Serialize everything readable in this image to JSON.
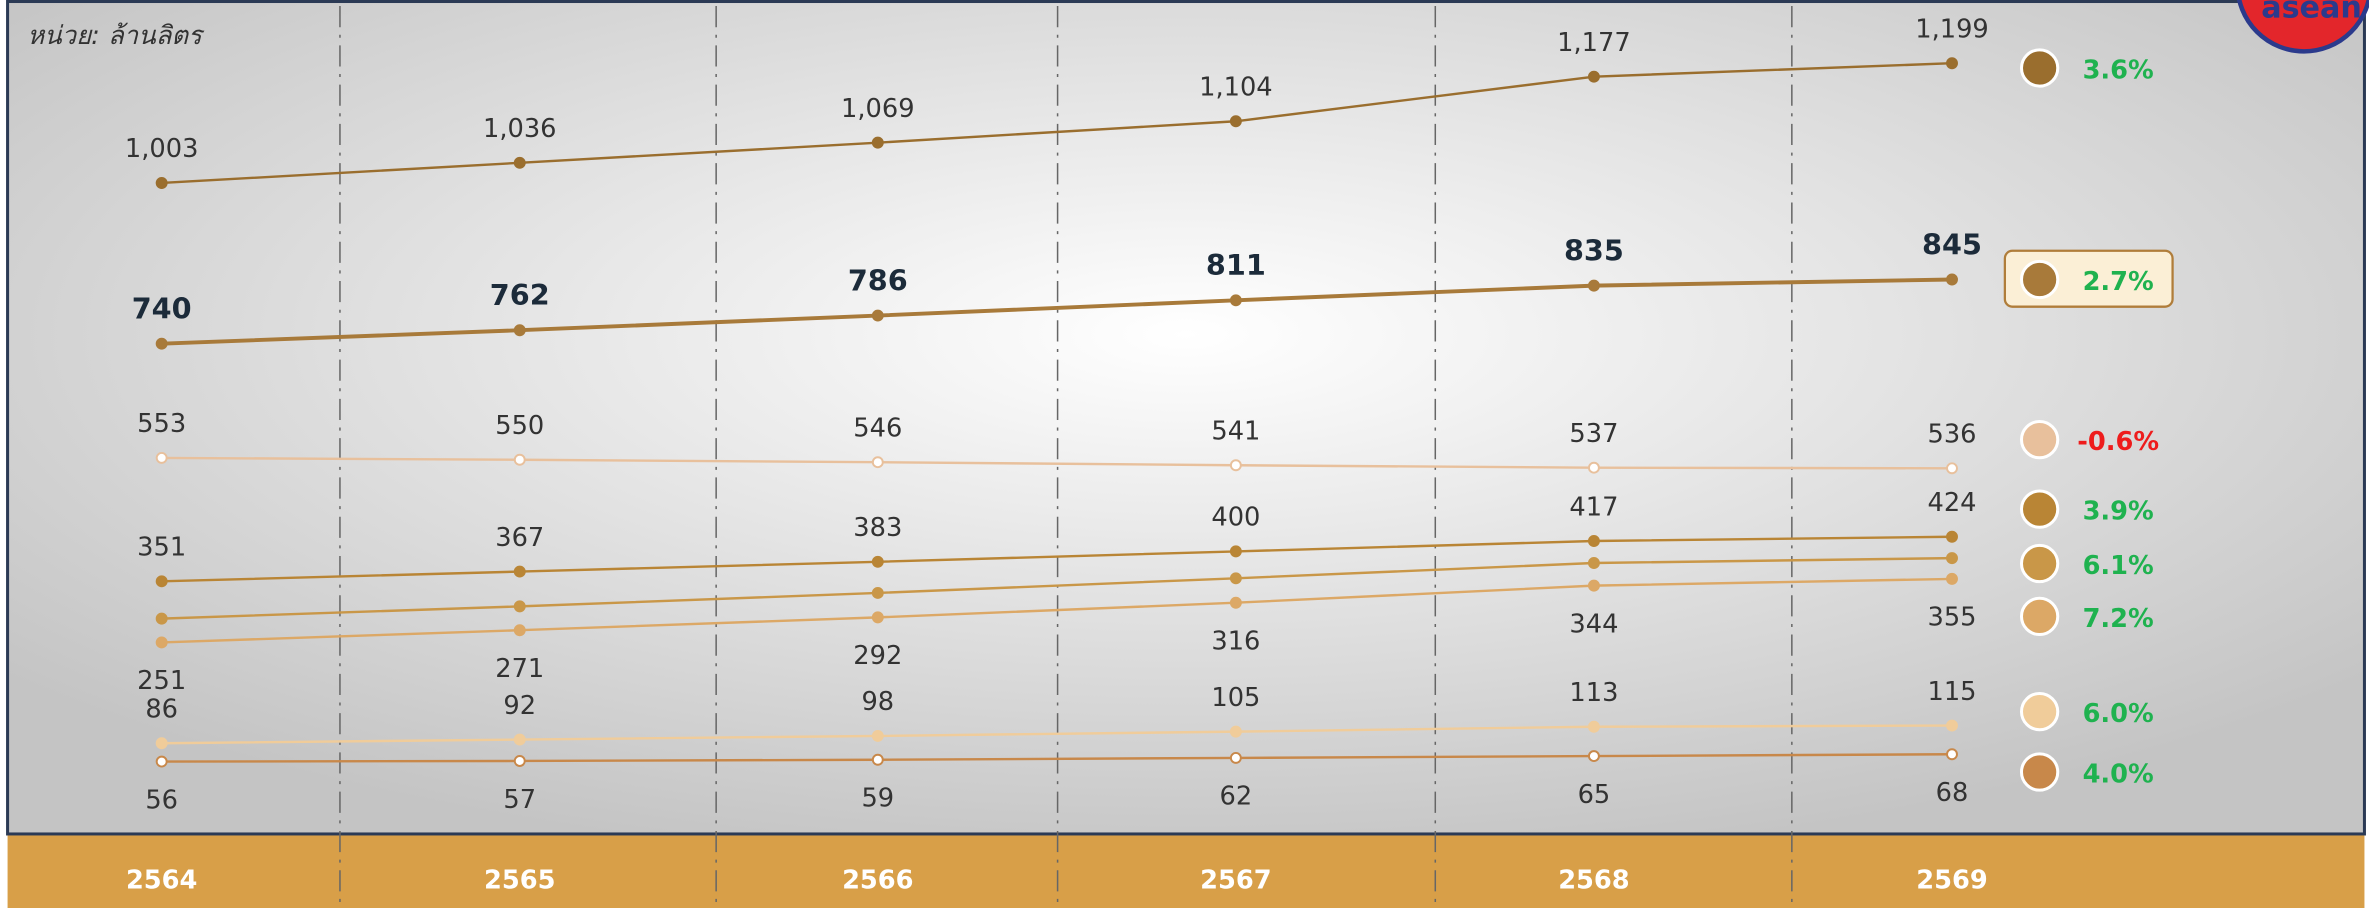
{
  "chart_data": {
    "type": "line",
    "subtitle": "หน่วย: ล้านลิตร",
    "logo": "asean",
    "categories": [
      "2564",
      "2565",
      "2566",
      "2567",
      "2568",
      "2569"
    ],
    "ylim": [
      -60,
      1300
    ],
    "series": [
      {
        "color": "#9a6e2e",
        "values": [
          1003,
          1036,
          1069,
          1104,
          1177,
          1199
        ],
        "value_labels": [
          "1,003",
          "1,036",
          "1,069",
          "1,104",
          "1,177",
          "1,199"
        ],
        "growth": "3.6%",
        "growth_color": "#1fb24f"
      },
      {
        "color": "#a87a3a",
        "values": [
          740,
          762,
          786,
          811,
          835,
          845
        ],
        "growth": "2.7%",
        "growth_color": "#1fb24f"
      },
      {
        "color": "#e8c09c",
        "values": [
          553,
          550,
          546,
          541,
          537,
          536
        ],
        "growth": "-0.6%",
        "growth_color": "#ee1c1c"
      },
      {
        "color": "#b98535",
        "values": [
          351,
          367,
          383,
          400,
          417,
          424
        ],
        "growth": "3.9%",
        "growth_color": "#1fb24f"
      },
      {
        "color": "#c99748",
        "values": [
          290,
          310,
          332,
          356,
          381,
          389
        ],
        "growth": "6.1%",
        "growth_color": "#1fb24f"
      },
      {
        "color": "#dca866",
        "values": [
          251,
          271,
          292,
          316,
          344,
          355
        ],
        "growth": "7.2%",
        "growth_color": "#1fb24f"
      },
      {
        "color": "#f0cc9a",
        "values": [
          86,
          92,
          98,
          105,
          113,
          115
        ],
        "growth": "6.0%",
        "growth_color": "#1fb24f"
      },
      {
        "color": "#c8884a",
        "values": [
          56,
          57,
          59,
          62,
          65,
          68
        ],
        "growth": "4.0%",
        "growth_color": "#1fb24f"
      }
    ]
  }
}
